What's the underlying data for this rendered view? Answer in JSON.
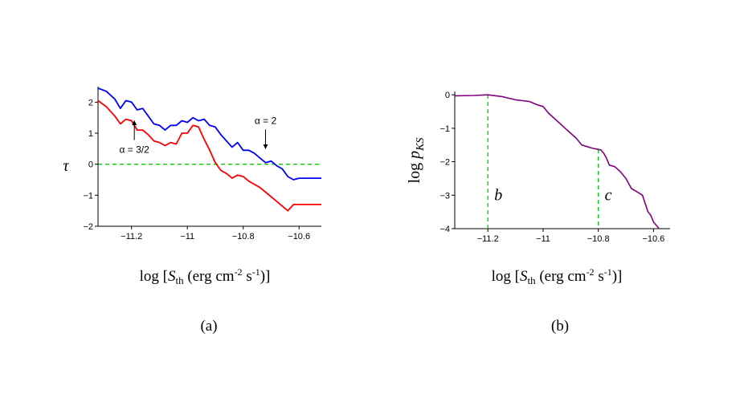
{
  "chart_data": [
    {
      "type": "line",
      "panel_label": "(a)",
      "ylabel": "τ",
      "xlabel": {
        "prefix": "log [",
        "symbol": "S",
        "subscript": "th",
        "unit_a": " (erg cm",
        "exp1": "-2",
        "unit_b": " s",
        "exp2": "-1",
        "suffix": ")]"
      },
      "xlim": [
        -11.32,
        -10.52
      ],
      "ylim": [
        -2,
        2.5
      ],
      "xticks": [
        -11.2,
        -11,
        -10.8,
        -10.6
      ],
      "xtick_labels": [
        "−11.2",
        "−11",
        "−10.8",
        "−10.6"
      ],
      "yticks": [
        -2,
        -1,
        0,
        1,
        2
      ],
      "ytick_labels": [
        "−2",
        "−1",
        "0",
        "1",
        "2"
      ],
      "reference_line": {
        "y": 0,
        "color": "#00cc00",
        "style": "dashed"
      },
      "series": [
        {
          "name": "α = 2",
          "color": "#0000ff",
          "x": [
            -11.32,
            -11.29,
            -11.26,
            -11.24,
            -11.22,
            -11.2,
            -11.18,
            -11.16,
            -11.14,
            -11.12,
            -11.1,
            -11.08,
            -11.06,
            -11.04,
            -11.02,
            -11,
            -10.98,
            -10.96,
            -10.94,
            -10.92,
            -10.9,
            -10.88,
            -10.86,
            -10.84,
            -10.82,
            -10.8,
            -10.78,
            -10.76,
            -10.74,
            -10.72,
            -10.7,
            -10.68,
            -10.66,
            -10.64,
            -10.62,
            -10.6,
            -10.58,
            -10.56,
            -10.54,
            -10.52
          ],
          "y": [
            2.45,
            2.35,
            2.1,
            1.8,
            2.05,
            2.0,
            1.75,
            1.8,
            1.55,
            1.3,
            1.25,
            1.1,
            1.25,
            1.25,
            1.4,
            1.35,
            1.5,
            1.4,
            1.45,
            1.25,
            1.2,
            0.95,
            0.75,
            0.55,
            0.7,
            0.45,
            0.45,
            0.35,
            0.2,
            0.05,
            0.1,
            -0.05,
            -0.15,
            -0.4,
            -0.5,
            -0.45,
            -0.45,
            -0.45,
            -0.45,
            -0.45
          ]
        },
        {
          "name": "α = 3/2",
          "color": "#ff0000",
          "x": [
            -11.32,
            -11.29,
            -11.26,
            -11.24,
            -11.22,
            -11.2,
            -11.18,
            -11.16,
            -11.14,
            -11.12,
            -11.1,
            -11.08,
            -11.06,
            -11.04,
            -11.02,
            -11,
            -10.98,
            -10.96,
            -10.94,
            -10.92,
            -10.9,
            -10.88,
            -10.86,
            -10.84,
            -10.82,
            -10.8,
            -10.78,
            -10.76,
            -10.74,
            -10.72,
            -10.7,
            -10.68,
            -10.66,
            -10.64,
            -10.62,
            -10.6,
            -10.58,
            -10.56,
            -10.54,
            -10.52
          ],
          "y": [
            2.05,
            1.85,
            1.55,
            1.3,
            1.45,
            1.4,
            1.1,
            1.1,
            0.95,
            0.75,
            0.7,
            0.6,
            0.7,
            0.65,
            1.0,
            1.0,
            1.25,
            1.2,
            0.8,
            0.45,
            0.05,
            -0.2,
            -0.3,
            -0.45,
            -0.35,
            -0.4,
            -0.55,
            -0.65,
            -0.75,
            -0.9,
            -1.05,
            -1.2,
            -1.35,
            -1.5,
            -1.3,
            -1.3,
            -1.3,
            -1.3,
            -1.3,
            -1.3
          ]
        }
      ],
      "annotations": [
        {
          "text": "α = 2",
          "target_x": -10.72,
          "target_y": 0.45,
          "direction": "down"
        },
        {
          "text": "α = 3/2",
          "target_x": -11.19,
          "target_y": 1.45,
          "direction": "up"
        }
      ]
    },
    {
      "type": "line",
      "panel_label": "(b)",
      "ylabel": {
        "text": "log ",
        "symbol": "p",
        "subscript": "KS"
      },
      "xlabel": {
        "prefix": "log [",
        "symbol": "S",
        "subscript": "th",
        "unit_a": " (erg cm",
        "exp1": "-2",
        "unit_b": " s",
        "exp2": "-1",
        "suffix": ")]"
      },
      "xlim": [
        -11.32,
        -10.54
      ],
      "ylim": [
        -4,
        0.1
      ],
      "xticks": [
        -11.2,
        -11,
        -10.8,
        -10.6
      ],
      "xtick_labels": [
        "−11.2",
        "−11",
        "−10.8",
        "−10.6"
      ],
      "yticks": [
        -4,
        -3,
        -2,
        -1,
        0
      ],
      "ytick_labels": [
        "−4",
        "−3",
        "−2",
        "−1",
        "0"
      ],
      "series": [
        {
          "name": "log p_KS",
          "color": "#800080",
          "x": [
            -11.32,
            -11.25,
            -11.2,
            -11.15,
            -11.1,
            -11.05,
            -11.02,
            -11.0,
            -10.98,
            -10.96,
            -10.94,
            -10.92,
            -10.9,
            -10.88,
            -10.86,
            -10.84,
            -10.82,
            -10.8,
            -10.79,
            -10.78,
            -10.77,
            -10.76,
            -10.74,
            -10.72,
            -10.7,
            -10.68,
            -10.66,
            -10.64,
            -10.62,
            -10.61,
            -10.6,
            -10.59,
            -10.58
          ],
          "y": [
            -0.03,
            -0.02,
            0.0,
            -0.05,
            -0.15,
            -0.2,
            -0.3,
            -0.35,
            -0.55,
            -0.7,
            -0.85,
            -1.0,
            -1.15,
            -1.3,
            -1.5,
            -1.55,
            -1.6,
            -1.63,
            -1.65,
            -1.75,
            -1.9,
            -2.1,
            -2.15,
            -2.3,
            -2.5,
            -2.8,
            -2.9,
            -3.0,
            -3.5,
            -3.6,
            -3.8,
            -3.9,
            -4.0
          ]
        }
      ],
      "reference_lines": [
        {
          "label": "b",
          "x": -11.2,
          "y_top": 0.0,
          "color": "#00cc00",
          "style": "dashed"
        },
        {
          "label": "c",
          "x": -10.8,
          "y_top": -1.63,
          "color": "#00cc00",
          "style": "dashed"
        }
      ]
    }
  ]
}
